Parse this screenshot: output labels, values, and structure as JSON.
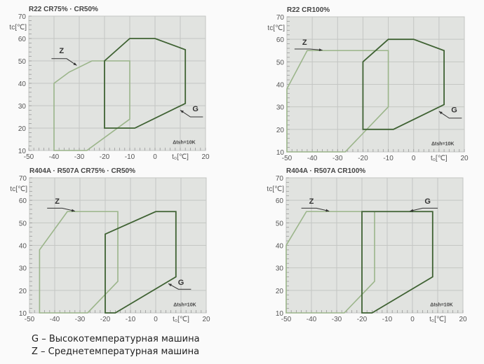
{
  "colors": {
    "plot_bg": "#e1e3e0",
    "grid": "#c4c6c3",
    "axis_text": "#555555",
    "z_line": "#9bb58a",
    "g_line": "#3f6233",
    "title": "#444444"
  },
  "chart_data": [
    {
      "type": "area",
      "title": "R22  CR75% · CR50%",
      "xlabel": "t₀[℃]",
      "ylabel": "tc[℃]",
      "xlim": [
        -50,
        20
      ],
      "ylim": [
        10,
        70
      ],
      "xticks": [
        -50,
        -40,
        -30,
        -20,
        -10,
        0,
        20
      ],
      "yticks": [
        10,
        20,
        30,
        40,
        50,
        60,
        70
      ],
      "annotation": "Δtsh=10K",
      "grid": true,
      "series": [
        {
          "name": "Z",
          "points": [
            [
              -40,
              10
            ],
            [
              -40,
              40
            ],
            [
              -34,
              45
            ],
            [
              -25,
              50
            ],
            [
              -10,
              50
            ],
            [
              -10,
              24
            ],
            [
              -27,
              10
            ]
          ]
        },
        {
          "name": "G",
          "points": [
            [
              -20,
              20
            ],
            [
              -20,
              50
            ],
            [
              -10,
              60
            ],
            [
              0,
              60
            ],
            [
              12,
              55
            ],
            [
              12,
              31
            ],
            [
              -8,
              20
            ]
          ]
        }
      ]
    },
    {
      "type": "area",
      "title": "R22  CR100%",
      "xlabel": "t₀[℃]",
      "ylabel": "tc[℃]",
      "xlim": [
        -50,
        20
      ],
      "ylim": [
        10,
        70
      ],
      "xticks": [
        -50,
        -40,
        -30,
        -20,
        -10,
        0,
        20
      ],
      "yticks": [
        10,
        20,
        30,
        40,
        50,
        60,
        70
      ],
      "annotation": "Δtsh=10K",
      "grid": true,
      "series": [
        {
          "name": "Z",
          "points": [
            [
              -50,
              10
            ],
            [
              -50,
              38
            ],
            [
              -42,
              55
            ],
            [
              -10,
              55
            ],
            [
              -10,
              30
            ],
            [
              -27,
              10
            ]
          ]
        },
        {
          "name": "G",
          "points": [
            [
              -20,
              20
            ],
            [
              -20,
              50
            ],
            [
              -10,
              60
            ],
            [
              0,
              60
            ],
            [
              12,
              55
            ],
            [
              12,
              31
            ],
            [
              -8,
              20
            ]
          ]
        }
      ]
    },
    {
      "type": "area",
      "title": "R404A · R507A     CR75% · CR50%",
      "xlabel": "t₀[℃]",
      "ylabel": "tc[℃]",
      "xlim": [
        -50,
        20
      ],
      "ylim": [
        10,
        70
      ],
      "xticks": [
        -50,
        -40,
        -30,
        -20,
        -10,
        0,
        20
      ],
      "yticks": [
        10,
        20,
        30,
        40,
        50,
        60,
        70
      ],
      "annotation": "Δtsh=10K",
      "grid": true,
      "series": [
        {
          "name": "Z",
          "points": [
            [
              -46,
              10
            ],
            [
              -46,
              38
            ],
            [
              -35,
              55
            ],
            [
              -15,
              55
            ],
            [
              -15,
              24
            ],
            [
              -27,
              10
            ]
          ]
        },
        {
          "name": "G",
          "points": [
            [
              -20,
              10
            ],
            [
              -20,
              45
            ],
            [
              0,
              55
            ],
            [
              8,
              55
            ],
            [
              8,
              26
            ],
            [
              -16,
              10
            ]
          ]
        }
      ]
    },
    {
      "type": "area",
      "title": "R404A · R507A     CR100%",
      "xlabel": "t₀[℃]",
      "ylabel": "tc[℃]",
      "xlim": [
        -50,
        20
      ],
      "ylim": [
        10,
        70
      ],
      "xticks": [
        -50,
        -40,
        -30,
        -20,
        -10,
        0,
        20
      ],
      "yticks": [
        10,
        20,
        30,
        40,
        50,
        60,
        70
      ],
      "annotation": "Δtsh=10K",
      "grid": true,
      "series": [
        {
          "name": "Z",
          "points": [
            [
              -50,
              10
            ],
            [
              -50,
              40
            ],
            [
              -42,
              55
            ],
            [
              -15,
              55
            ],
            [
              -15,
              24
            ],
            [
              -27,
              10
            ]
          ]
        },
        {
          "name": "G",
          "points": [
            [
              -20,
              10
            ],
            [
              -20,
              55
            ],
            [
              8,
              55
            ],
            [
              8,
              26
            ],
            [
              -16,
              10
            ]
          ]
        }
      ]
    }
  ],
  "legend": [
    "G – Высокотемпературная машина",
    "Z – Среднетемпературная машина"
  ]
}
